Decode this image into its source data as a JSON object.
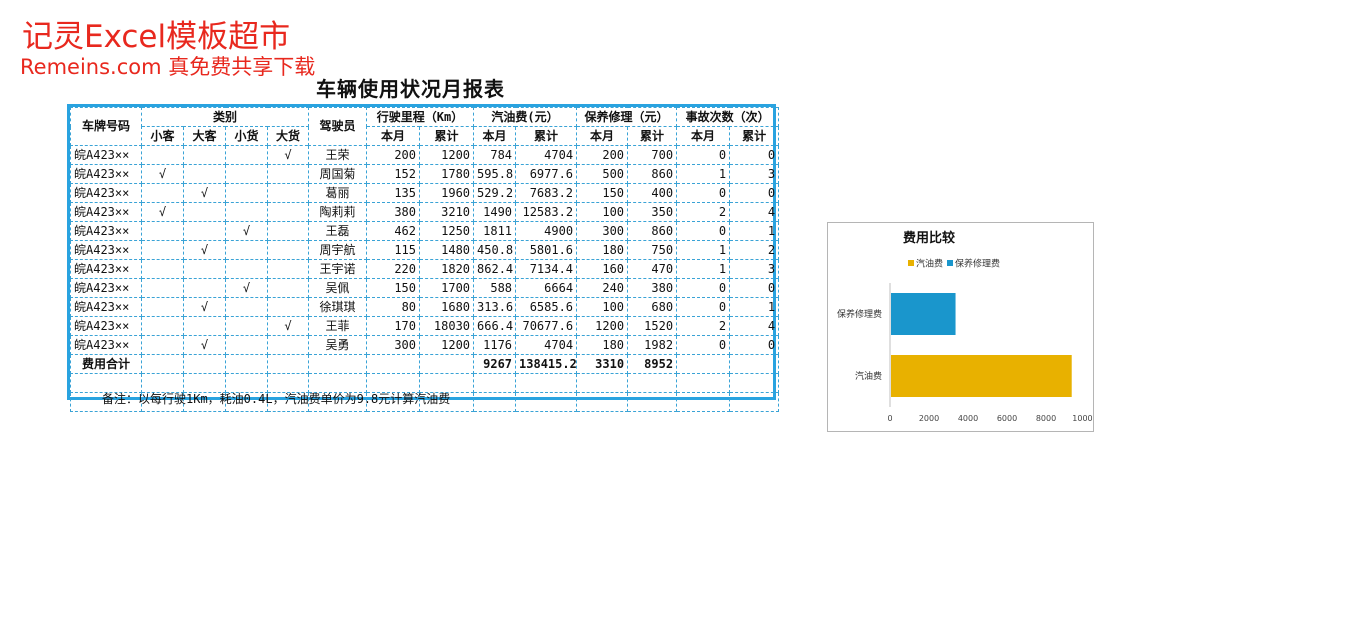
{
  "watermark": {
    "line1": "记灵Excel模板超市",
    "line2": "Remeins.com 真免费共享下载"
  },
  "report": {
    "title": "车辆使用状况月报表",
    "headers": {
      "plate": "车牌号码",
      "category": "类别",
      "cat_small_bus": "小客",
      "cat_large_bus": "大客",
      "cat_small_truck": "小货",
      "cat_large_truck": "大货",
      "driver": "驾驶员",
      "mileage": "行驶里程（Km）",
      "fuel": "汽油费(元）",
      "maintenance": "保养修理（元）",
      "accidents": "事故次数（次）",
      "month": "本月",
      "cumulative": "累计"
    },
    "rows": [
      {
        "plate": "皖A423××",
        "c1": "",
        "c2": "",
        "c3": "",
        "c4": "√",
        "driver": "王荣",
        "km_m": "200",
        "km_c": "1200",
        "fuel_m": "784",
        "fuel_c": "4704",
        "mt_m": "200",
        "mt_c": "700",
        "acc_m": "0",
        "acc_c": "0"
      },
      {
        "plate": "皖A423××",
        "c1": "√",
        "c2": "",
        "c3": "",
        "c4": "",
        "driver": "周国菊",
        "km_m": "152",
        "km_c": "1780",
        "fuel_m": "595.8",
        "fuel_c": "6977.6",
        "mt_m": "500",
        "mt_c": "860",
        "acc_m": "1",
        "acc_c": "3"
      },
      {
        "plate": "皖A423××",
        "c1": "",
        "c2": "√",
        "c3": "",
        "c4": "",
        "driver": "葛丽",
        "km_m": "135",
        "km_c": "1960",
        "fuel_m": "529.2",
        "fuel_c": "7683.2",
        "mt_m": "150",
        "mt_c": "400",
        "acc_m": "0",
        "acc_c": "0"
      },
      {
        "plate": "皖A423××",
        "c1": "√",
        "c2": "",
        "c3": "",
        "c4": "",
        "driver": "陶莉莉",
        "km_m": "380",
        "km_c": "3210",
        "fuel_m": "1490",
        "fuel_c": "12583.2",
        "mt_m": "100",
        "mt_c": "350",
        "acc_m": "2",
        "acc_c": "4"
      },
      {
        "plate": "皖A423××",
        "c1": "",
        "c2": "",
        "c3": "√",
        "c4": "",
        "driver": "王磊",
        "km_m": "462",
        "km_c": "1250",
        "fuel_m": "1811",
        "fuel_c": "4900",
        "mt_m": "300",
        "mt_c": "860",
        "acc_m": "0",
        "acc_c": "1"
      },
      {
        "plate": "皖A423××",
        "c1": "",
        "c2": "√",
        "c3": "",
        "c4": "",
        "driver": "周宇航",
        "km_m": "115",
        "km_c": "1480",
        "fuel_m": "450.8",
        "fuel_c": "5801.6",
        "mt_m": "180",
        "mt_c": "750",
        "acc_m": "1",
        "acc_c": "2"
      },
      {
        "plate": "皖A423××",
        "c1": "",
        "c2": "",
        "c3": "",
        "c4": "",
        "driver": "王宇诺",
        "km_m": "220",
        "km_c": "1820",
        "fuel_m": "862.4",
        "fuel_c": "7134.4",
        "mt_m": "160",
        "mt_c": "470",
        "acc_m": "1",
        "acc_c": "3"
      },
      {
        "plate": "皖A423××",
        "c1": "",
        "c2": "",
        "c3": "√",
        "c4": "",
        "driver": "吴佩",
        "km_m": "150",
        "km_c": "1700",
        "fuel_m": "588",
        "fuel_c": "6664",
        "mt_m": "240",
        "mt_c": "380",
        "acc_m": "0",
        "acc_c": "0"
      },
      {
        "plate": "皖A423××",
        "c1": "",
        "c2": "√",
        "c3": "",
        "c4": "",
        "driver": "徐琪琪",
        "km_m": "80",
        "km_c": "1680",
        "fuel_m": "313.6",
        "fuel_c": "6585.6",
        "mt_m": "100",
        "mt_c": "680",
        "acc_m": "0",
        "acc_c": "1"
      },
      {
        "plate": "皖A423××",
        "c1": "",
        "c2": "",
        "c3": "",
        "c4": "√",
        "driver": "王菲",
        "km_m": "170",
        "km_c": "18030",
        "fuel_m": "666.4",
        "fuel_c": "70677.6",
        "mt_m": "1200",
        "mt_c": "1520",
        "acc_m": "2",
        "acc_c": "4"
      },
      {
        "plate": "皖A423××",
        "c1": "",
        "c2": "√",
        "c3": "",
        "c4": "",
        "driver": "吴勇",
        "km_m": "300",
        "km_c": "1200",
        "fuel_m": "1176",
        "fuel_c": "4704",
        "mt_m": "180",
        "mt_c": "1982",
        "acc_m": "0",
        "acc_c": "0"
      }
    ],
    "total": {
      "label": "费用合计",
      "fuel_m": "9267",
      "fuel_c": "138415.2",
      "mt_m": "3310",
      "mt_c": "8952"
    },
    "note": "备注：以每行驶1Km，耗油0.4L，汽油费单价为9.8元计算汽油费"
  },
  "chart_data": {
    "type": "bar",
    "orientation": "horizontal",
    "title": "费用比较",
    "categories": [
      "汽油费",
      "保养修理费"
    ],
    "series": [
      {
        "name": "汽油费",
        "values": [
          9267,
          null
        ],
        "color": "#e8b100"
      },
      {
        "name": "保养修理费",
        "values": [
          null,
          3310
        ],
        "color": "#1a96cc"
      }
    ],
    "xlim": [
      0,
      10000
    ],
    "xticks": [
      "0",
      "2000",
      "4000",
      "6000",
      "8000",
      "10000"
    ],
    "legend": "top",
    "grid": false
  }
}
